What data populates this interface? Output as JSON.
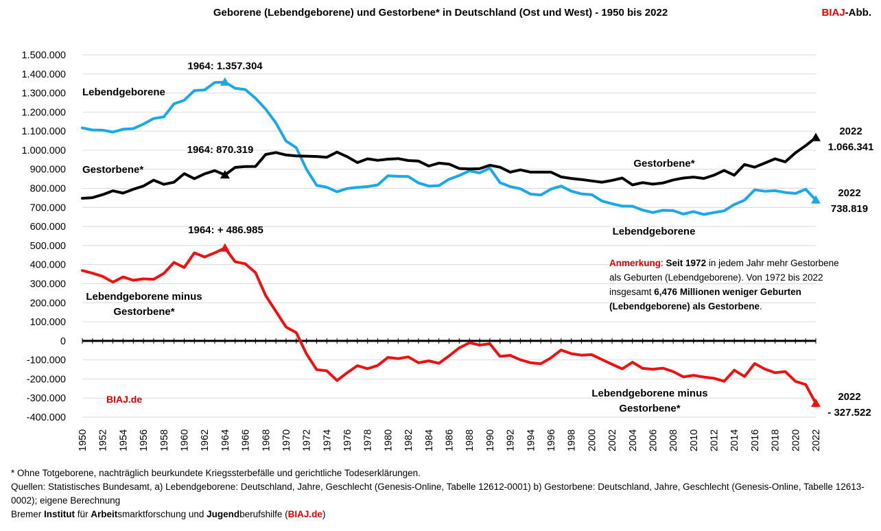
{
  "title": "Geborene (Lebendgeborene) und Gestorbene* in Deutschland (Ost und West) - 1950 bis 2022",
  "brand": {
    "red": "BIAJ",
    "rest": "-Abb."
  },
  "chart_data": {
    "type": "line",
    "x": [
      1950,
      1951,
      1952,
      1953,
      1954,
      1955,
      1956,
      1957,
      1958,
      1959,
      1960,
      1961,
      1962,
      1963,
      1964,
      1965,
      1966,
      1967,
      1968,
      1969,
      1970,
      1971,
      1972,
      1973,
      1974,
      1975,
      1976,
      1977,
      1978,
      1979,
      1980,
      1981,
      1982,
      1983,
      1984,
      1985,
      1986,
      1987,
      1988,
      1989,
      1990,
      1991,
      1992,
      1993,
      1994,
      1995,
      1996,
      1997,
      1998,
      1999,
      2000,
      2001,
      2002,
      2003,
      2004,
      2005,
      2006,
      2007,
      2008,
      2009,
      2010,
      2011,
      2012,
      2013,
      2014,
      2015,
      2016,
      2017,
      2018,
      2019,
      2020,
      2021,
      2022
    ],
    "ylim": [
      -400000,
      1500000
    ],
    "y_ticks": [
      "1.500.000",
      "1.400.000",
      "1.300.000",
      "1.200.000",
      "1.100.000",
      "1.000.000",
      "900.000",
      "800.000",
      "700.000",
      "600.000",
      "500.000",
      "400.000",
      "300.000",
      "200.000",
      "100.000",
      "0",
      "-100.000",
      "-200.000",
      "-300.000",
      "-400.000"
    ],
    "x_tick_labels": [
      "1950",
      "1952",
      "1954",
      "1956",
      "1958",
      "1960",
      "1962",
      "1964",
      "1966",
      "1968",
      "1970",
      "1972",
      "1974",
      "1976",
      "1978",
      "1980",
      "1982",
      "1984",
      "1986",
      "1988",
      "1990",
      "1992",
      "1994",
      "1996",
      "1998",
      "2000",
      "2002",
      "2004",
      "2006",
      "2008",
      "2010",
      "2012",
      "2014",
      "2016",
      "2018",
      "2020",
      "2022"
    ],
    "series": [
      {
        "name": "Lebendgeborene",
        "color": "#1ba8e8",
        "values": [
          1117000,
          1106000,
          1105000,
          1095000,
          1110000,
          1113000,
          1137000,
          1166000,
          1175000,
          1243000,
          1262000,
          1313000,
          1316000,
          1355000,
          1357304,
          1325000,
          1318000,
          1273000,
          1215000,
          1143000,
          1048000,
          1013000,
          901000,
          816000,
          806000,
          782000,
          799000,
          805000,
          809000,
          818000,
          866000,
          863000,
          862000,
          828000,
          812000,
          814000,
          848000,
          867000,
          892000,
          881000,
          906000,
          830000,
          809000,
          798000,
          770000,
          765000,
          796000,
          812000,
          785000,
          771000,
          767000,
          734000,
          719000,
          707000,
          706000,
          686000,
          673000,
          685000,
          683000,
          665000,
          678000,
          663000,
          673000,
          682000,
          715000,
          738000,
          792000,
          785000,
          788000,
          778000,
          773000,
          795000,
          738819
        ]
      },
      {
        "name": "Gestorbene*",
        "color": "#000000",
        "values": [
          748000,
          751000,
          767000,
          787000,
          775000,
          795000,
          812000,
          843000,
          821000,
          832000,
          877000,
          851000,
          876000,
          893000,
          870319,
          910000,
          914000,
          915000,
          978000,
          988000,
          975000,
          970000,
          969000,
          967000,
          963000,
          990000,
          966000,
          935000,
          955000,
          947000,
          953000,
          956000,
          946000,
          943000,
          917000,
          932000,
          927000,
          904000,
          902000,
          903000,
          921000,
          911000,
          885000,
          897000,
          885000,
          885000,
          885000,
          860000,
          852000,
          846000,
          839000,
          832000,
          842000,
          854000,
          818000,
          830000,
          822000,
          828000,
          844000,
          854000,
          859000,
          852000,
          869000,
          894000,
          869000,
          925000,
          911000,
          933000,
          955000,
          939000,
          986000,
          1024000,
          1066341
        ]
      },
      {
        "name": "Lebendgeborene minus Gestorbene*",
        "color": "#ee1111",
        "values": [
          369000,
          355000,
          338000,
          308000,
          335000,
          318000,
          325000,
          323000,
          354000,
          411000,
          385000,
          462000,
          440000,
          462000,
          486985,
          415000,
          404000,
          358000,
          237000,
          155000,
          73000,
          43000,
          -68000,
          -151000,
          -157000,
          -208000,
          -167000,
          -130000,
          -146000,
          -129000,
          -87000,
          -93000,
          -84000,
          -115000,
          -105000,
          -118000,
          -79000,
          -37000,
          -10000,
          -22000,
          -15000,
          -81000,
          -76000,
          -99000,
          -115000,
          -120000,
          -89000,
          -48000,
          -67000,
          -75000,
          -72000,
          -98000,
          -123000,
          -147000,
          -112000,
          -144000,
          -149000,
          -143000,
          -161000,
          -189000,
          -181000,
          -190000,
          -196000,
          -212000,
          -154000,
          -187000,
          -119000,
          -148000,
          -167000,
          -161000,
          -212000,
          -229000,
          -327522
        ]
      }
    ],
    "annotations": {
      "peak_births": "1964: 1.357.304",
      "peak_deaths": "1964: 870.319",
      "peak_diff": "1964: + 486.985",
      "label_births_left": "Lebendgeborene",
      "label_births_right": "Lebendgeborene",
      "label_deaths_left": "Gestorbene*",
      "label_deaths_right": "Gestorbene*",
      "label_diff_left_line1": "Lebendgeborene minus",
      "label_diff_left_line2": "Gestorbene*",
      "label_diff_right_line1": "Lebendgeborene minus",
      "label_diff_right_line2": "Gestorbene*",
      "end_deaths_year": "2022",
      "end_deaths_value": "1.066.341",
      "end_births_year": "2022",
      "end_births_value": "738.819",
      "end_diff_year": "2022",
      "end_diff_value": "- 327.522",
      "watermark": "BIAJ.de"
    },
    "note": {
      "red_label": "Anmerkung",
      "line1_pre": ": ",
      "line1_bold": "Seit 1972",
      "line1_rest": " in jedem Jahr mehr Gestorbene",
      "line2": "als Geburten (Lebendgeborene). Von 1972 bis 2022",
      "line3_pre": "insgesamt ",
      "line3_bold": "6,476 Millionen weniger Geburten",
      "line4_bold": "(Lebendgeborene) als Gestorbene",
      "line4_end": "."
    }
  },
  "footer": {
    "line1": "* Ohne Totgeborene, nachträglich beurkundete Kriegssterbefälle und gerichtliche Todeserklärungen.",
    "line2": "Quellen: Statistisches Bundesamt, a) Lebendgeborene: Deutschland, Jahre, Geschlecht (Genesis-Online, Tabelle 12612-0001) b) Gestorbene: Deutschland, Jahre, Geschlecht (Genesis-Online, Tabelle 12613-0002); eigene Berechnung",
    "line3": {
      "p1": "Bremer ",
      "b1": "Institut",
      "p2": " für ",
      "b2": "Arbeit",
      "p3": "smarktforschung und ",
      "b3": "Jugend",
      "p4": "berufshilfe (",
      "red": "BIAJ.de",
      "p5": ")"
    }
  }
}
